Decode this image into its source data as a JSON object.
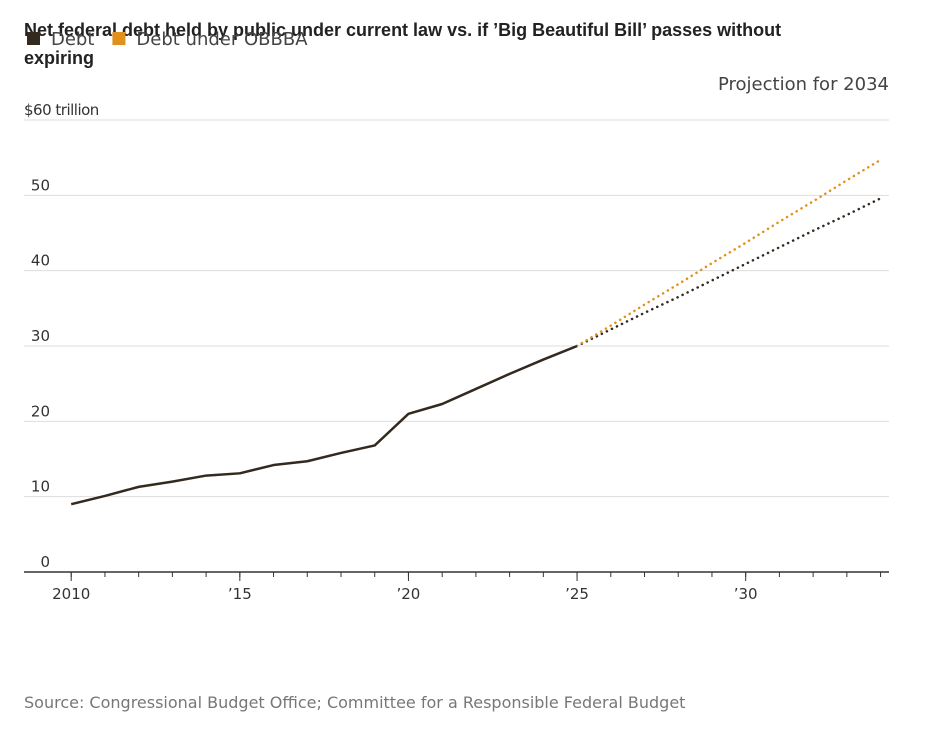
{
  "chart_data": {
    "type": "line",
    "title": "Net federal debt held by public under current law vs. if ’Big Beautiful Bill’ passes without expiring",
    "annotation": "Projection for 2034",
    "source": "Source: Congressional Budget Office; Committee for a Responsible Federal Budget",
    "x": [
      2010,
      2011,
      2012,
      2013,
      2014,
      2015,
      2016,
      2017,
      2018,
      2019,
      2020,
      2021,
      2022,
      2023,
      2024,
      2025,
      2026,
      2027,
      2028,
      2029,
      2030,
      2031,
      2032,
      2033,
      2034
    ],
    "projection_start": 2025,
    "series": [
      {
        "name": "Debt",
        "color": "#33291f",
        "values": [
          9.0,
          10.1,
          11.3,
          12.0,
          12.8,
          13.1,
          14.2,
          14.7,
          15.8,
          16.8,
          21.0,
          22.3,
          24.3,
          26.3,
          28.2,
          30.0,
          32.2,
          34.4,
          36.5,
          38.7,
          40.9,
          43.1,
          45.3,
          47.4,
          49.6
        ]
      },
      {
        "name": "Debt under OBBBA",
        "color": "#e0901b",
        "values": [
          null,
          null,
          null,
          null,
          null,
          null,
          null,
          null,
          null,
          null,
          null,
          null,
          null,
          null,
          null,
          30.0,
          32.7,
          35.5,
          38.2,
          41.0,
          43.7,
          46.5,
          49.2,
          52.0,
          54.7
        ]
      }
    ],
    "xlim": [
      2008.6,
      2034.25
    ],
    "ylim": [
      0,
      60
    ],
    "xticks": [
      2010,
      {
        "value": 2015,
        "label": "’15"
      },
      {
        "value": 2020,
        "label": "’20"
      },
      {
        "value": 2025,
        "label": "’25"
      },
      {
        "value": 2030,
        "label": "’30"
      }
    ],
    "xminorticks": [
      2010,
      2011,
      2012,
      2013,
      2014,
      2015,
      2016,
      2017,
      2018,
      2019,
      2020,
      2021,
      2022,
      2023,
      2024,
      2025,
      2026,
      2027,
      2028,
      2029,
      2030,
      2031,
      2032,
      2033,
      2034
    ],
    "yticks": [
      0,
      10,
      20,
      30,
      40,
      50,
      {
        "value": 60,
        "label": "$60 trillion"
      }
    ],
    "grid": true,
    "legend": "top-left"
  }
}
